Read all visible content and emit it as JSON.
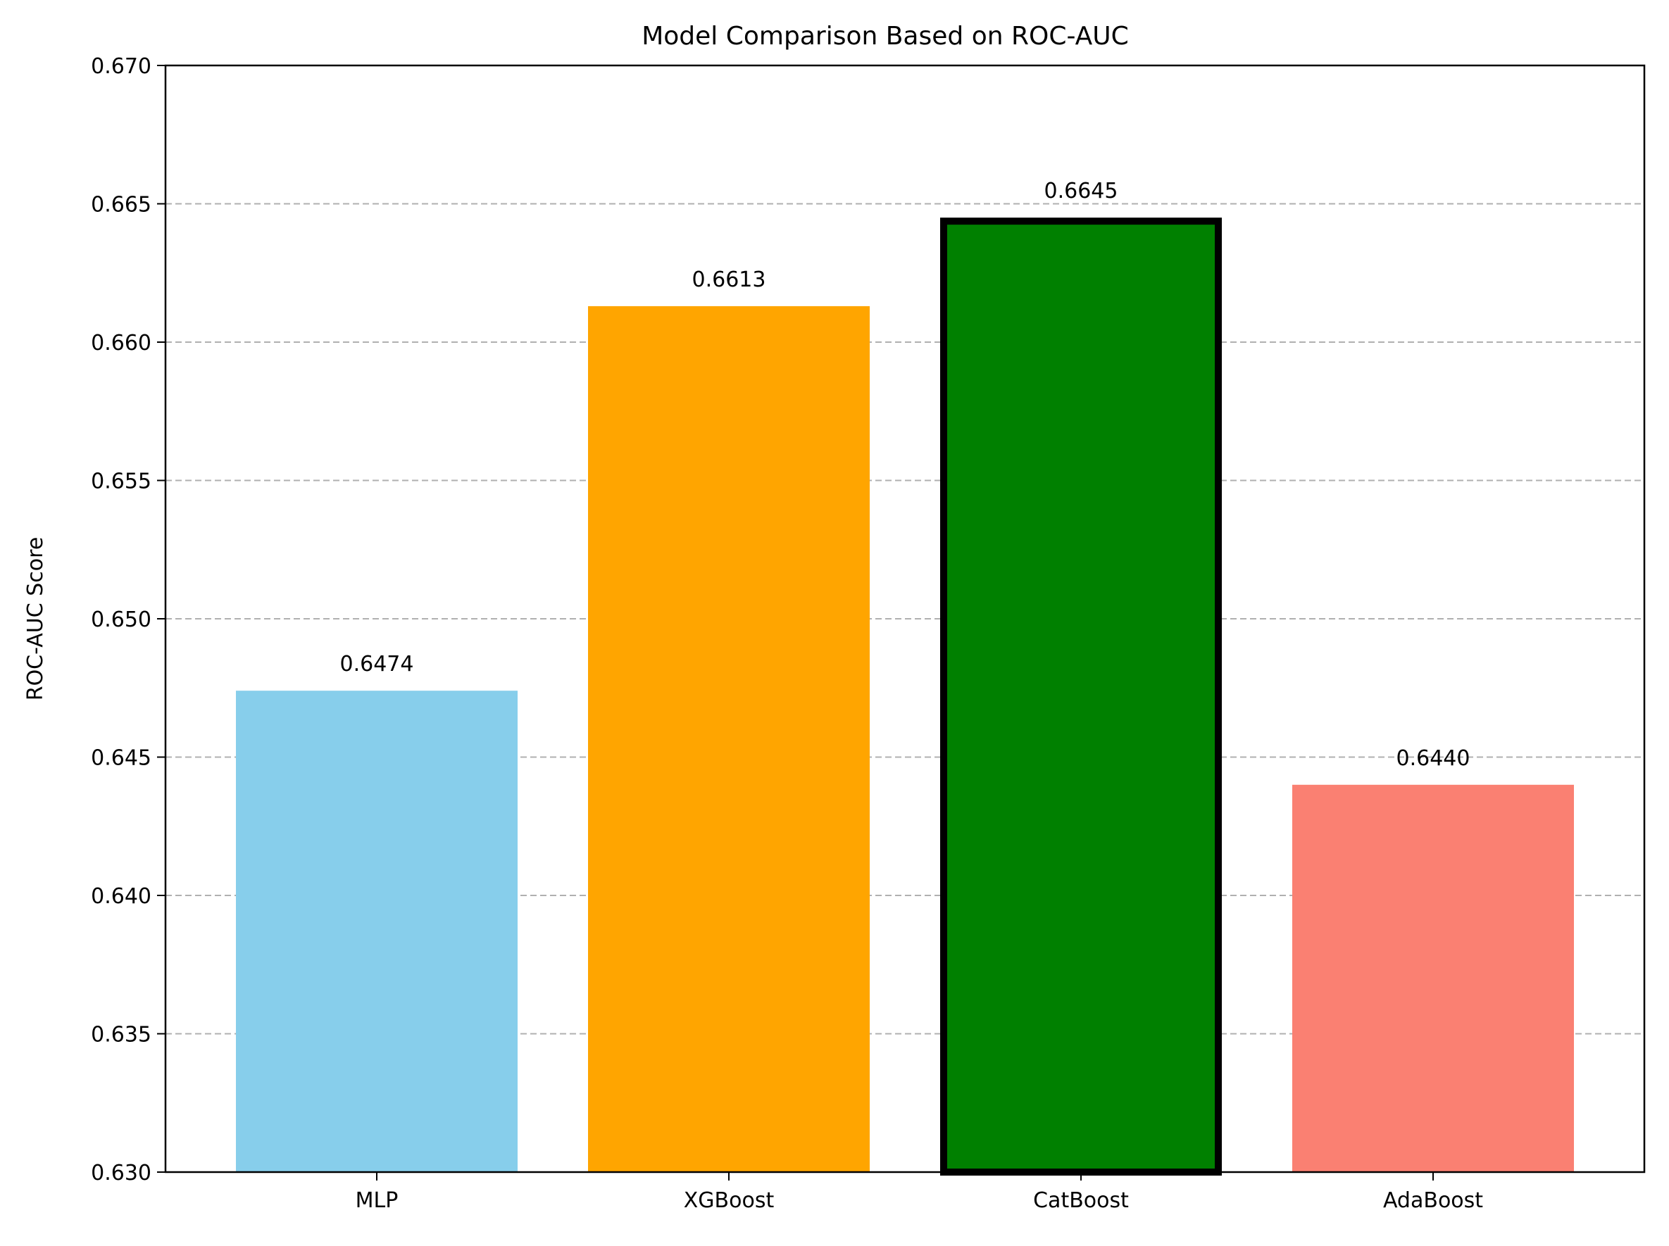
{
  "chart_data": {
    "type": "bar",
    "title": "Model Comparison Based on ROC-AUC",
    "xlabel": "",
    "ylabel": "ROC-AUC Score",
    "categories": [
      "MLP",
      "XGBoost",
      "CatBoost",
      "AdaBoost"
    ],
    "values": [
      0.6474,
      0.6613,
      0.6645,
      0.644
    ],
    "value_labels": [
      "0.6474",
      "0.6613",
      "0.6645",
      "0.6440"
    ],
    "colors": [
      "#87CEEB",
      "#FFA500",
      "#008000",
      "#FA8072"
    ],
    "highlighted": "CatBoost",
    "highlight_edge_color": "#000000",
    "ylim": [
      0.63,
      0.67
    ],
    "yticks": [
      0.63,
      0.635,
      0.64,
      0.645,
      0.65,
      0.655,
      0.66,
      0.665,
      0.67
    ],
    "ytick_labels": [
      "0.630",
      "0.635",
      "0.640",
      "0.645",
      "0.650",
      "0.655",
      "0.660",
      "0.665",
      "0.670"
    ],
    "grid": {
      "axis": "y",
      "style": "dashed",
      "color": "#b0b0b0"
    },
    "legend": "none"
  }
}
